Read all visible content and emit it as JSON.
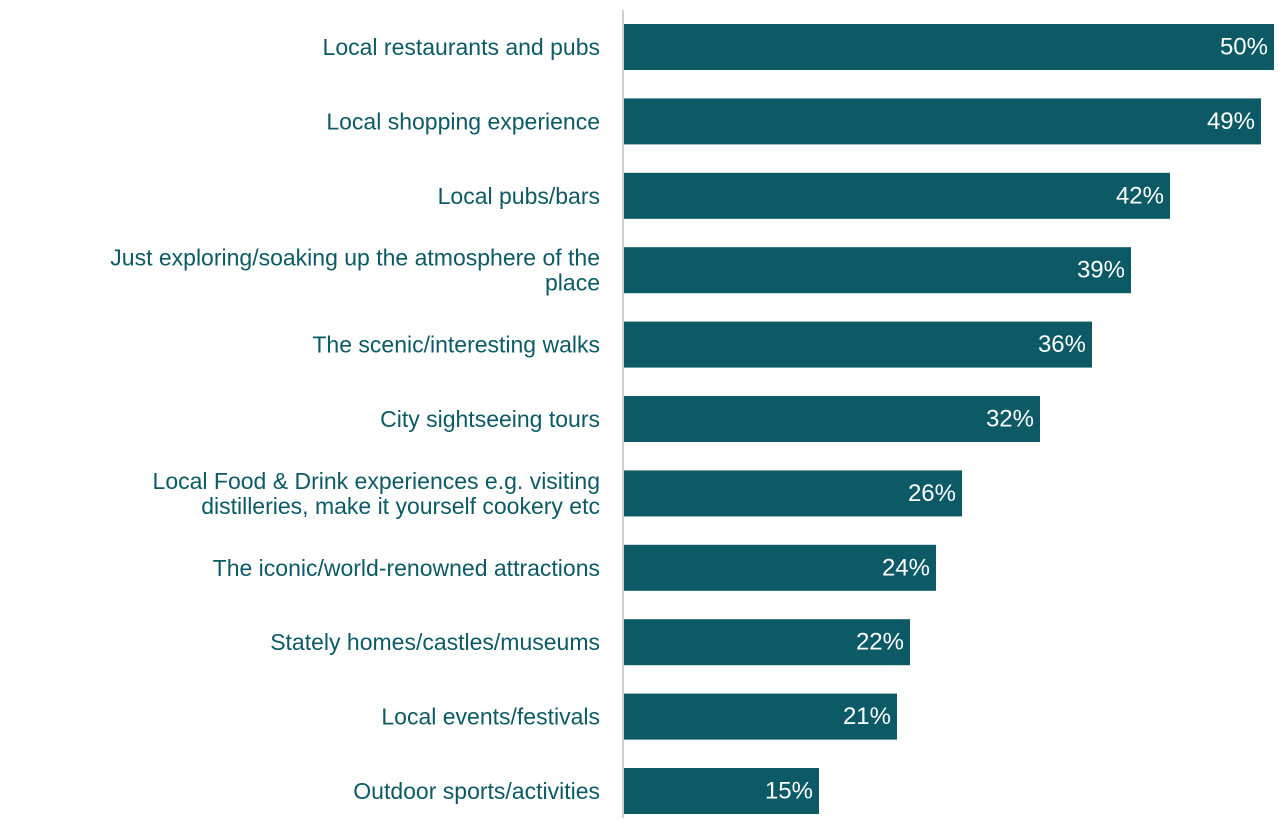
{
  "chart_data": {
    "type": "bar",
    "orientation": "horizontal",
    "categories": [
      "Local restaurants and pubs",
      "Local shopping experience",
      "Local pubs/bars",
      "Just exploring/soaking up the atmosphere of the place",
      "The scenic/interesting walks",
      "City sightseeing tours",
      "Local Food & Drink experiences e.g. visiting distilleries, make it yourself cookery etc",
      "The iconic/world-renowned attractions",
      "Stately homes/castles/museums",
      "Local events/festivals",
      "Outdoor sports/activities"
    ],
    "category_lines": [
      [
        "Local restaurants and pubs"
      ],
      [
        "Local shopping experience"
      ],
      [
        "Local pubs/bars"
      ],
      [
        "Just exploring/soaking up the atmosphere of the",
        "place"
      ],
      [
        "The scenic/interesting walks"
      ],
      [
        "City sightseeing tours"
      ],
      [
        "Local Food & Drink experiences e.g. visiting",
        "distilleries, make it yourself cookery etc"
      ],
      [
        "The iconic/world-renowned attractions"
      ],
      [
        "Stately homes/castles/museums"
      ],
      [
        "Local events/festivals"
      ],
      [
        "Outdoor sports/activities"
      ]
    ],
    "values": [
      50,
      49,
      42,
      39,
      36,
      32,
      26,
      24,
      22,
      21,
      15
    ],
    "value_labels": [
      "50%",
      "49%",
      "42%",
      "39%",
      "36%",
      "32%",
      "26%",
      "24%",
      "22%",
      "21%",
      "15%"
    ],
    "unit": "%",
    "title": "",
    "xlabel": "",
    "ylabel": "",
    "xlim": [
      0,
      50
    ],
    "grid": false,
    "legend": "none",
    "colors": {
      "bar": "#0b5a66",
      "label": "#0b5a66",
      "value_text": "#ffffff",
      "axis_line": "#d0d0d0"
    }
  }
}
